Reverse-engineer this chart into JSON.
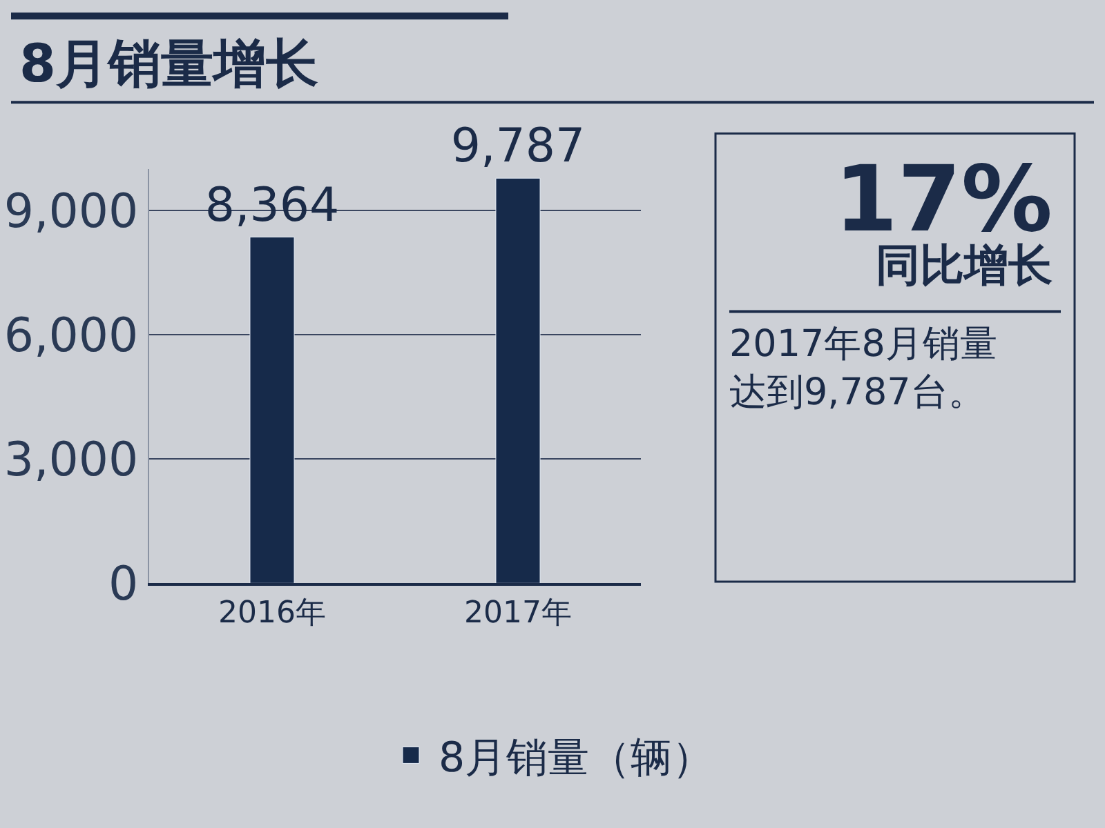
{
  "chart_data": {
    "type": "bar",
    "title": "8月销量增长",
    "categories": [
      "2016年",
      "2017年"
    ],
    "series": [
      {
        "name": "8月销量（辆）",
        "color": "#162a4a",
        "values": [
          8364,
          9787
        ],
        "value_labels": [
          "8,364",
          "9,787"
        ]
      }
    ],
    "ylim": [
      0,
      10000
    ],
    "yticks": [
      {
        "value": 0,
        "label": "0"
      },
      {
        "value": 3000,
        "label": "3,000"
      },
      {
        "value": 6000,
        "label": "6,000"
      },
      {
        "value": 9000,
        "label": "9,000"
      }
    ],
    "grid": "y",
    "legend": "bottom",
    "annotations": [
      "17%",
      "同比增长",
      "2017年8月销量达到9,787台。"
    ]
  }
}
